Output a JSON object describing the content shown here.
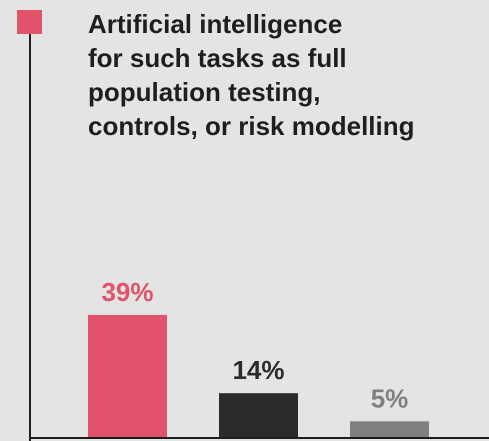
{
  "chart_data": {
    "type": "bar",
    "title": [
      "Artificial intelligence",
      "for such tasks as full",
      "population testing,",
      "controls, or risk modelling"
    ],
    "categories": [
      null,
      null,
      null
    ],
    "values": [
      39,
      14,
      5
    ],
    "value_labels": [
      "39%",
      "14%",
      "5%"
    ],
    "colors": [
      "#e0536b",
      "#2a2b2b",
      "#808080"
    ],
    "legend_color": "#e0536b"
  }
}
